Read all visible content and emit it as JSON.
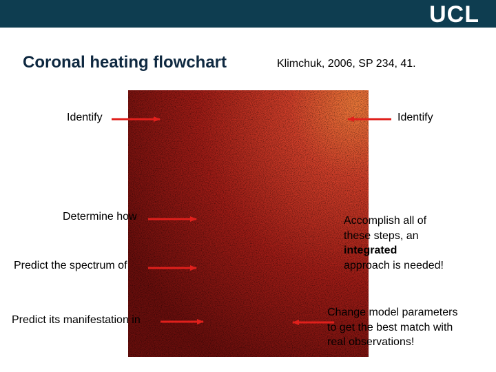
{
  "header": {
    "logo": "UCL"
  },
  "title": "Coronal heating flowchart",
  "citation": "Klimchuk, 2006, SP 234, 41.",
  "left_labels": [
    "Identify",
    "Determine how",
    "Predict the spectrum of",
    "Predict its manifestation in"
  ],
  "right_label": "Identify",
  "note_integrated": {
    "lines": [
      "Accomplish all of",
      "these steps, an",
      "integrated",
      "approach is needed!"
    ]
  },
  "note_change": {
    "lines": [
      "Change model parameters",
      "to get the best match with",
      "real observations!"
    ]
  }
}
